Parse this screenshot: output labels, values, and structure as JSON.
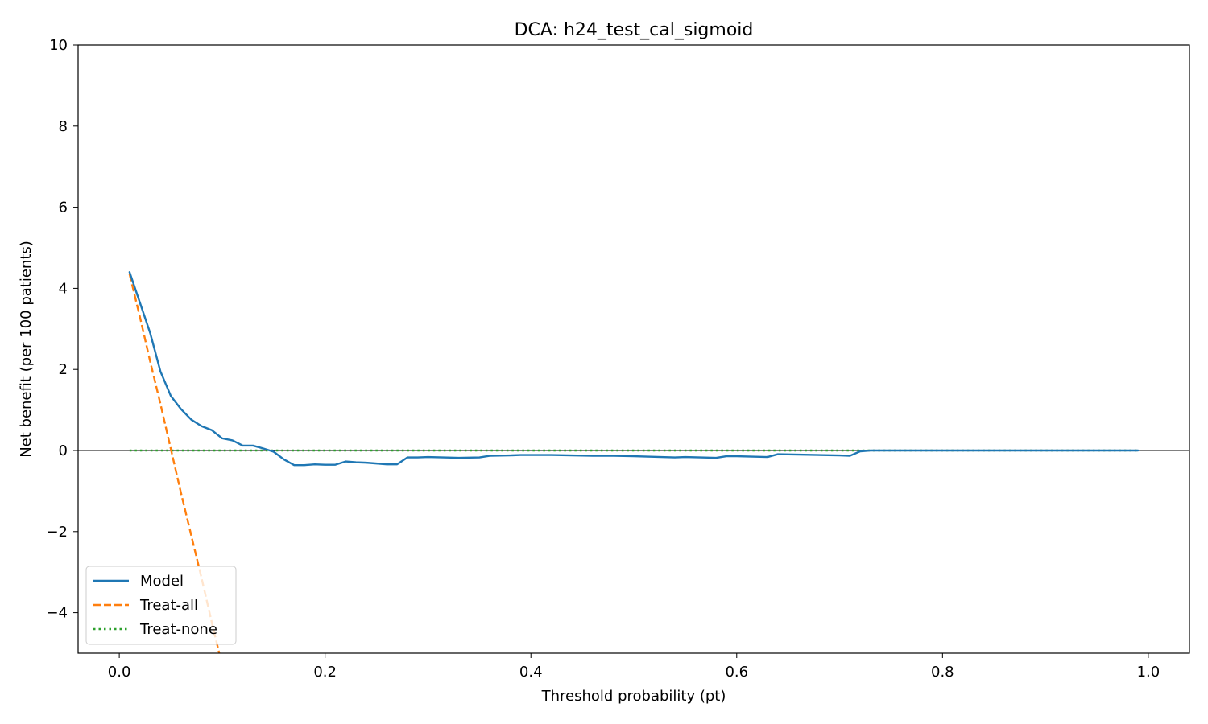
{
  "chart_data": {
    "type": "line",
    "title": "DCA: h24_test_cal_sigmoid",
    "xlabel": "Threshold probability (pt)",
    "ylabel": "Net benefit (per 100 patients)",
    "xlim": [
      -0.04,
      1.04
    ],
    "ylim": [
      -5,
      10
    ],
    "xticks": [
      0.0,
      0.2,
      0.4,
      0.6,
      0.8,
      1.0
    ],
    "xtick_labels": [
      "0.0",
      "0.2",
      "0.4",
      "0.6",
      "0.8",
      "1.0"
    ],
    "yticks": [
      -4,
      -2,
      0,
      2,
      4,
      6,
      8,
      10
    ],
    "ytick_labels": [
      "−4",
      "−2",
      "0",
      "2",
      "4",
      "6",
      "8",
      "10"
    ],
    "grid": false,
    "zero_reference_line": true,
    "legend_position": "lower-left",
    "series": [
      {
        "name": "Model",
        "color": "#1f77b4",
        "style": "solid",
        "x": [
          0.01,
          0.02,
          0.03,
          0.04,
          0.05,
          0.06,
          0.07,
          0.08,
          0.09,
          0.1,
          0.11,
          0.12,
          0.13,
          0.14,
          0.15,
          0.16,
          0.17,
          0.18,
          0.19,
          0.2,
          0.21,
          0.22,
          0.23,
          0.24,
          0.25,
          0.26,
          0.27,
          0.28,
          0.29,
          0.3,
          0.33,
          0.35,
          0.36,
          0.38,
          0.39,
          0.42,
          0.46,
          0.48,
          0.5,
          0.54,
          0.55,
          0.58,
          0.59,
          0.6,
          0.63,
          0.64,
          0.66,
          0.7,
          0.71,
          0.72,
          0.73,
          0.8,
          0.9,
          0.99
        ],
        "y": [
          4.4,
          3.65,
          2.9,
          1.95,
          1.35,
          1.02,
          0.76,
          0.6,
          0.5,
          0.3,
          0.25,
          0.12,
          0.12,
          0.05,
          -0.03,
          -0.22,
          -0.36,
          -0.36,
          -0.34,
          -0.35,
          -0.35,
          -0.27,
          -0.29,
          -0.3,
          -0.32,
          -0.34,
          -0.34,
          -0.17,
          -0.17,
          -0.16,
          -0.18,
          -0.17,
          -0.13,
          -0.12,
          -0.11,
          -0.11,
          -0.13,
          -0.13,
          -0.14,
          -0.17,
          -0.16,
          -0.18,
          -0.14,
          -0.14,
          -0.16,
          -0.09,
          -0.1,
          -0.12,
          -0.13,
          -0.02,
          0.0,
          0.0,
          0.0,
          0.0
        ]
      },
      {
        "name": "Treat-all",
        "color": "#ff7f0e",
        "style": "dashed",
        "x": [
          0.01,
          0.02,
          0.03,
          0.04,
          0.05,
          0.06,
          0.07,
          0.08,
          0.09,
          0.1
        ],
        "y": [
          4.35,
          3.3,
          2.2,
          1.15,
          0.05,
          -1.05,
          -2.1,
          -3.15,
          -4.25,
          -5.3
        ]
      },
      {
        "name": "Treat-none",
        "color": "#2ca02c",
        "style": "dotted",
        "x": [
          0.01,
          0.99
        ],
        "y": [
          0.0,
          0.0
        ]
      }
    ]
  }
}
